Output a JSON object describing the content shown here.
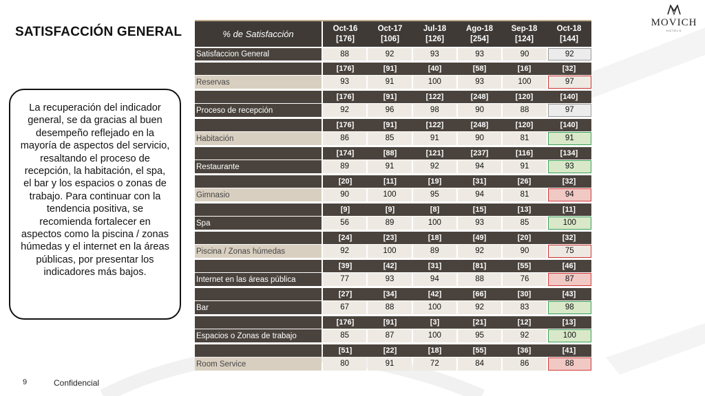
{
  "title": "SATISFACCIÓN GENERAL",
  "logo": {
    "word": "MOVICH",
    "sub": "HOTELS"
  },
  "callout_text": "La recuperación del indicador general, se da gracias al buen desempeño reflejado en la mayoría de aspectos del servicio, resaltando el proceso de recepción, la habitación, el spa, el bar y los espacios o zonas de trabajo. Para continuar con la tendencia positiva, se recomienda fortalecer en aspectos como la piscina / zonas húmedas y el internet en la áreas públicas, por presentar los indicadores más bajos.",
  "footer": {
    "page": "9",
    "label": "Confidencial"
  },
  "table": {
    "header_label": "% de Satisfacción",
    "columns": [
      {
        "period": "Oct-16",
        "n": "[176]"
      },
      {
        "period": "Oct-17",
        "n": "[106]"
      },
      {
        "period": "Jul-18",
        "n": "[126]"
      },
      {
        "period": "Ago-18",
        "n": "[254]"
      },
      {
        "period": "Sep-18",
        "n": "[124]"
      },
      {
        "period": "Oct-18",
        "n": "[144]"
      }
    ],
    "general": {
      "label": "Satisfaccion General",
      "values": [
        "88",
        "92",
        "93",
        "93",
        "90",
        "92"
      ],
      "status": "grey"
    },
    "rows": [
      {
        "label": "Reservas",
        "n": [
          "[176]",
          "[91]",
          "[40]",
          "[58]",
          "[16]",
          "[32]"
        ],
        "values": [
          "93",
          "91",
          "100",
          "93",
          "100",
          "97"
        ],
        "status": "plain",
        "dark": false
      },
      {
        "label": "Proceso de recepción",
        "n": [
          "[176]",
          "[91]",
          "[122]",
          "[248]",
          "[120]",
          "[140]"
        ],
        "values": [
          "92",
          "96",
          "98",
          "90",
          "88",
          "97"
        ],
        "status": "grey",
        "dark": true
      },
      {
        "label": "Habitación",
        "n": [
          "[176]",
          "[91]",
          "[122]",
          "[248]",
          "[120]",
          "[140]"
        ],
        "values": [
          "86",
          "85",
          "91",
          "90",
          "81",
          "91"
        ],
        "status": "green",
        "dark": false
      },
      {
        "label": "Restaurante",
        "n": [
          "[174]",
          "[88]",
          "[121]",
          "[237]",
          "[116]",
          "[134]"
        ],
        "values": [
          "89",
          "91",
          "92",
          "94",
          "91",
          "93"
        ],
        "status": "green",
        "dark": true
      },
      {
        "label": "Gimnasio",
        "n": [
          "[20]",
          "[11]",
          "[19]",
          "[31]",
          "[26]",
          "[32]"
        ],
        "values": [
          "90",
          "100",
          "95",
          "94",
          "81",
          "94"
        ],
        "status": "red",
        "dark": false
      },
      {
        "label": "Spa",
        "n": [
          "[9]",
          "[9]",
          "[8]",
          "[15]",
          "[13]",
          "[11]"
        ],
        "values": [
          "56",
          "89",
          "100",
          "93",
          "85",
          "100"
        ],
        "status": "green",
        "dark": true
      },
      {
        "label": "Piscina / Zonas húmedas",
        "n": [
          "[24]",
          "[23]",
          "[18]",
          "[49]",
          "[20]",
          "[32]"
        ],
        "values": [
          "92",
          "100",
          "89",
          "92",
          "90",
          "75"
        ],
        "status": "plain",
        "dark": false
      },
      {
        "label": "Internet en las áreas pública",
        "n": [
          "[39]",
          "[42]",
          "[31]",
          "[81]",
          "[55]",
          "[46]"
        ],
        "values": [
          "77",
          "93",
          "94",
          "88",
          "76",
          "87"
        ],
        "status": "red",
        "dark": true
      },
      {
        "label": "Bar",
        "n": [
          "[27]",
          "[34]",
          "[42]",
          "[66]",
          "[30]",
          "[43]"
        ],
        "values": [
          "67",
          "88",
          "100",
          "92",
          "83",
          "98"
        ],
        "status": "green",
        "dark": true
      },
      {
        "label": "Espacios o Zonas de trabajo",
        "n": [
          "[176]",
          "[91]",
          "[3]",
          "[21]",
          "[12]",
          "[13]"
        ],
        "values": [
          "85",
          "87",
          "100",
          "95",
          "92",
          "100"
        ],
        "status": "green",
        "dark": true
      },
      {
        "label": "Room Service",
        "n": [
          "[51]",
          "[22]",
          "[18]",
          "[55]",
          "[36]",
          "[41]"
        ],
        "values": [
          "80",
          "91",
          "72",
          "84",
          "86",
          "88"
        ],
        "status": "red",
        "dark": false
      }
    ]
  }
}
